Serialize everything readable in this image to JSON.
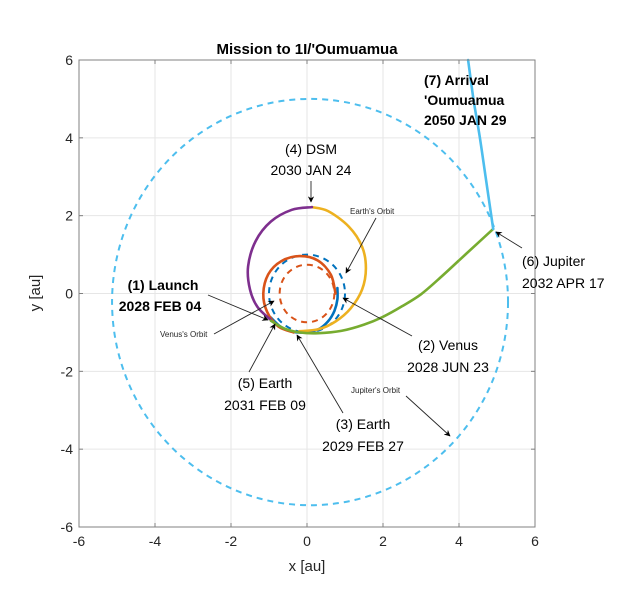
{
  "chart_data": {
    "type": "line",
    "title": "Mission to 1I/'Oumuamua",
    "xlabel": "x [au]",
    "ylabel": "y [au]",
    "xlim": [
      -6,
      6
    ],
    "ylim": [
      -6,
      6
    ],
    "xticks": [
      "-6",
      "-4",
      "-2",
      "0",
      "2",
      "4",
      "6"
    ],
    "yticks": [
      "6",
      "4",
      "2",
      "0",
      "-2",
      "-4",
      "-6"
    ],
    "xtick_values": [
      -6,
      -4,
      -2,
      0,
      2,
      4,
      6
    ],
    "ytick_values": [
      6,
      4,
      2,
      0,
      -2,
      -4,
      -6
    ],
    "grid": true,
    "orbits": [
      {
        "name": "Earth's Orbit",
        "center": [
          0,
          0
        ],
        "a": 1.0,
        "b": 1.0,
        "color": "#0072BD",
        "style": "dashed"
      },
      {
        "name": "Venus's Orbit",
        "center": [
          0,
          0
        ],
        "a": 0.72,
        "b": 0.74,
        "color": "#D95319",
        "style": "dashed"
      },
      {
        "name": "Jupiter's Orbit",
        "center": [
          0.08,
          -0.22
        ],
        "a": 5.21,
        "b": 5.22,
        "color": "#4DBEEE",
        "style": "dashed"
      }
    ],
    "series": [
      {
        "name": "Launch to Venus",
        "color": "#0072BD",
        "x": [
          -0.95,
          -0.7,
          -0.4,
          -0.05,
          0.3,
          0.55,
          0.72,
          0.8,
          0.8
        ],
        "y": [
          -0.62,
          -0.85,
          -0.98,
          -1.0,
          -0.92,
          -0.72,
          -0.45,
          -0.15,
          0.14
        ]
      },
      {
        "name": "Venus to Earth",
        "color": "#D95319",
        "x": [
          0.75,
          0.63,
          0.28,
          -0.2,
          -0.68,
          -1.02,
          -1.15,
          -1.05,
          -0.75,
          -0.35
        ],
        "y": [
          0.0,
          0.48,
          0.85,
          0.96,
          0.83,
          0.49,
          0.0,
          -0.47,
          -0.85,
          -1.0
        ]
      },
      {
        "name": "Earth to DSM",
        "color": "#EDB120",
        "x": [
          -0.2,
          0.3,
          0.75,
          1.15,
          1.45,
          1.55,
          1.45,
          1.1,
          0.55,
          0.13
        ],
        "y": [
          -0.97,
          -0.92,
          -0.72,
          -0.38,
          0.1,
          0.65,
          1.2,
          1.72,
          2.12,
          2.22
        ]
      },
      {
        "name": "DSM to Earth",
        "color": "#7E2F8E",
        "x": [
          0.13,
          -0.4,
          -0.95,
          -1.35,
          -1.55,
          -1.5,
          -1.3,
          -0.95
        ],
        "y": [
          2.22,
          2.15,
          1.85,
          1.35,
          0.7,
          0.1,
          -0.35,
          -0.68
        ]
      },
      {
        "name": "Earth to Jupiter",
        "color": "#77AC30",
        "x": [
          -0.95,
          -0.6,
          -0.2,
          0.3,
          0.9,
          1.5,
          2.0,
          2.5,
          3.0,
          3.5,
          4.0,
          4.5,
          4.9
        ],
        "y": [
          -0.7,
          -0.9,
          -1.0,
          -1.02,
          -0.96,
          -0.8,
          -0.6,
          -0.33,
          -0.02,
          0.4,
          0.85,
          1.3,
          1.66
        ]
      },
      {
        "name": "Jupiter to 'Oumuamua",
        "color": "#4DBEEE",
        "x": [
          4.9,
          4.7,
          4.55,
          4.38,
          4.24
        ],
        "y": [
          1.66,
          3.0,
          4.0,
          5.0,
          6.0
        ]
      }
    ],
    "annotations": {
      "launch": [
        "(1) Launch",
        "2028 FEB 04"
      ],
      "venus": [
        "(2) Venus",
        "2028 JUN 23"
      ],
      "earth3": [
        "(3) Earth",
        "2029 FEB 27"
      ],
      "dsm": [
        "(4) DSM",
        "2030 JAN 24"
      ],
      "earth5": [
        "(5) Earth",
        "2031 FEB 09"
      ],
      "jupiter": [
        "(6) Jupiter",
        "2032 APR 17"
      ],
      "arrival": [
        "(7) Arrival",
        "'Oumuamua",
        "2050 JAN 29"
      ],
      "earth_orbit": "Earth's Orbit",
      "venus_orbit": "Venus's Orbit",
      "jupiter_orbit": "Jupiter's Orbit"
    }
  }
}
